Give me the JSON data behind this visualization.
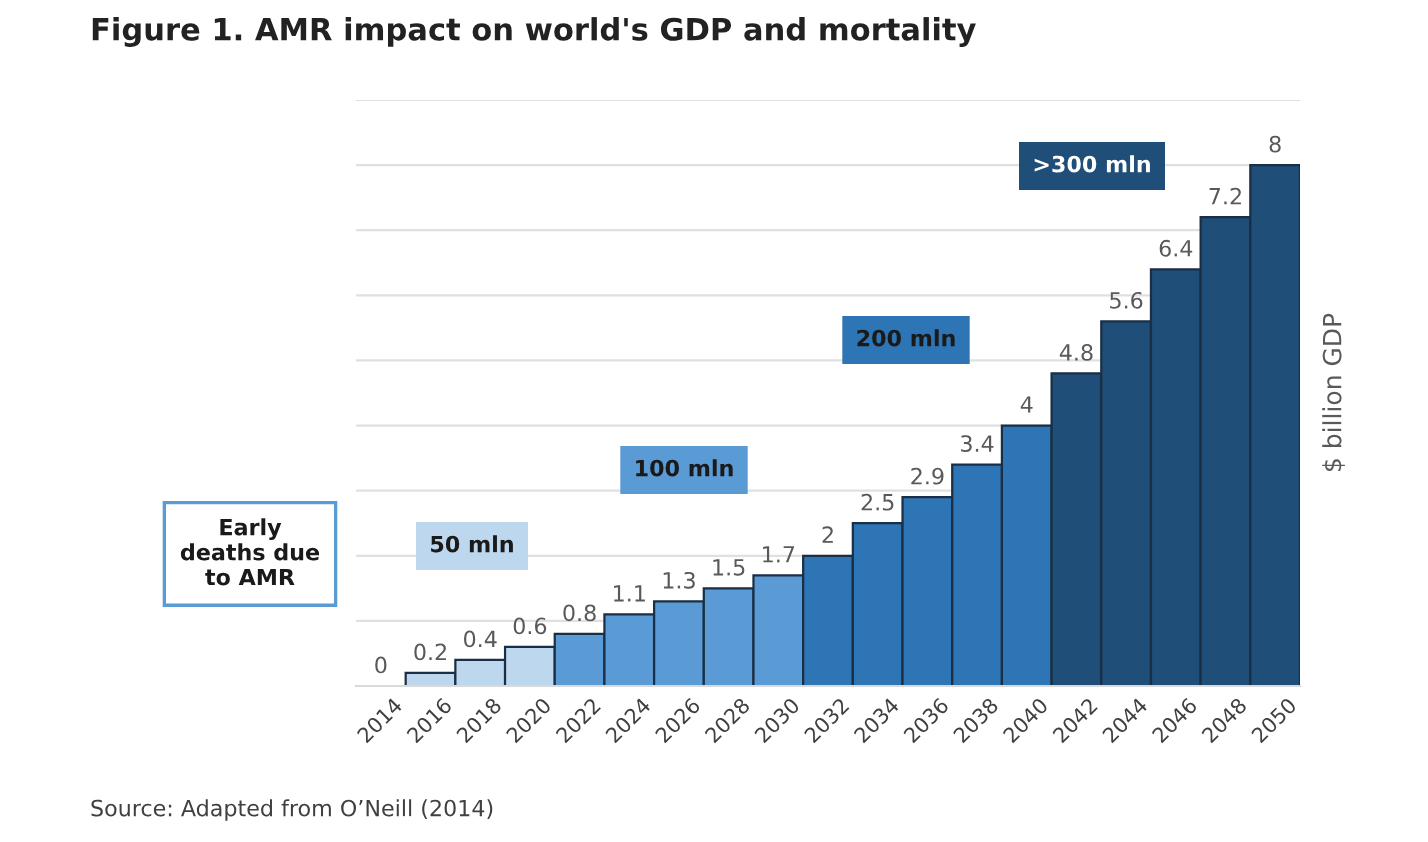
{
  "chart_data": {
    "type": "bar",
    "title": "Figure 1. AMR impact on world's GDP and mortality",
    "ylabel": "$ billion GDP",
    "categories": [
      "2014",
      "2016",
      "2018",
      "2020",
      "2022",
      "2024",
      "2026",
      "2028",
      "2030",
      "2032",
      "2034",
      "2036",
      "2038",
      "2040",
      "2042",
      "2044",
      "2046",
      "2048",
      "2050"
    ],
    "values": [
      0,
      0.2,
      0.4,
      0.6,
      0.8,
      1.1,
      1.3,
      1.5,
      1.7,
      2,
      2.5,
      2.9,
      3.4,
      4,
      4.8,
      5.6,
      6.4,
      7.2,
      8
    ],
    "colors": [
      "#bdd7ee",
      "#bdd7ee",
      "#bdd7ee",
      "#bdd7ee",
      "#5b9bd5",
      "#5b9bd5",
      "#5b9bd5",
      "#5b9bd5",
      "#5b9bd5",
      "#2e75b6",
      "#2e75b6",
      "#2e75b6",
      "#2e75b6",
      "#2e75b6",
      "#1f4e79",
      "#1f4e79",
      "#1f4e79",
      "#1f4e79",
      "#1f4e79"
    ],
    "data_labels": true,
    "ylim": [
      0,
      9
    ],
    "yticks": [
      {
        "value": 0,
        "label": null
      },
      {
        "value": 1,
        "label": null
      },
      {
        "value": 2,
        "label": null
      },
      {
        "value": 3,
        "label": null
      },
      {
        "value": 4,
        "label": null
      },
      {
        "value": 5,
        "label": null
      },
      {
        "value": 6,
        "label": null
      },
      {
        "value": 7,
        "label": null
      },
      {
        "value": 8,
        "label": null
      },
      {
        "value": 9,
        "label": null
      }
    ],
    "grid": "y",
    "tick_labels": "x",
    "annotations": [
      "Early\ndeaths due\nto AMR",
      "50 mln",
      "100 mln",
      "200 mln",
      ">300 mln",
      "Source: Adapted from O’Neill (2014)"
    ]
  }
}
